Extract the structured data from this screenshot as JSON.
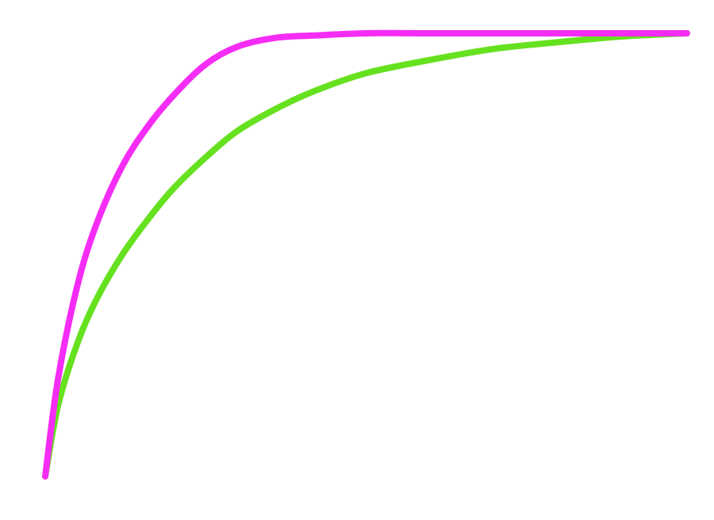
{
  "chart_data": {
    "type": "line",
    "title": "",
    "xlabel": "",
    "ylabel": "",
    "xlim": [
      0,
      1
    ],
    "ylim": [
      0,
      1
    ],
    "grid": false,
    "legend": "none",
    "series": [
      {
        "color": "#f52cf5",
        "x": [
          0,
          0.02,
          0.05,
          0.08,
          0.12,
          0.16,
          0.2,
          0.25,
          0.3,
          0.36,
          0.42,
          0.5,
          0.6,
          0.7,
          0.8,
          0.9,
          1.0
        ],
        "y": [
          0.0,
          0.22,
          0.43,
          0.57,
          0.7,
          0.79,
          0.86,
          0.93,
          0.97,
          0.99,
          0.995,
          1.0,
          1.0,
          1.0,
          1.0,
          1.0,
          1.0
        ]
      },
      {
        "color": "#66e11f",
        "x": [
          0,
          0.02,
          0.05,
          0.08,
          0.12,
          0.16,
          0.2,
          0.25,
          0.3,
          0.36,
          0.42,
          0.5,
          0.6,
          0.7,
          0.8,
          0.9,
          1.0
        ],
        "y": [
          0.0,
          0.16,
          0.3,
          0.4,
          0.5,
          0.58,
          0.65,
          0.72,
          0.78,
          0.83,
          0.87,
          0.91,
          0.94,
          0.965,
          0.98,
          0.993,
          1.0
        ]
      }
    ]
  }
}
